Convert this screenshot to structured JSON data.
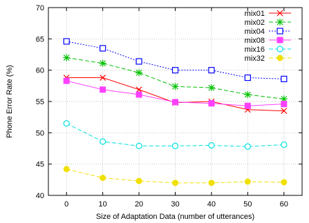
{
  "chart_data": {
    "type": "line",
    "title": "",
    "xlabel": "Size of Adaptation Data (number of utterances)",
    "ylabel": "Phone Error Rate (%)",
    "xlim": [
      -5,
      65
    ],
    "ylim": [
      40,
      70
    ],
    "xticks": [
      0,
      10,
      20,
      30,
      40,
      50,
      60
    ],
    "yticks": [
      40,
      45,
      50,
      55,
      60,
      65,
      70
    ],
    "grid": true,
    "legend_position": "top-right",
    "x": [
      0,
      10,
      20,
      30,
      40,
      50,
      60
    ],
    "series": [
      {
        "name": "mix01",
        "color": "#ff0000",
        "marker": "x",
        "dash": "solid",
        "values": [
          58.8,
          58.8,
          56.9,
          54.8,
          55.0,
          53.7,
          53.5
        ]
      },
      {
        "name": "mix02",
        "color": "#00c000",
        "marker": "star",
        "dash": "dashed",
        "values": [
          62.0,
          61.1,
          59.6,
          57.4,
          57.2,
          56.1,
          55.4
        ]
      },
      {
        "name": "mix04",
        "color": "#0000ff",
        "marker": "open-square",
        "dash": "dotted",
        "values": [
          64.6,
          63.5,
          61.4,
          60.0,
          60.0,
          58.8,
          58.6
        ]
      },
      {
        "name": "mix08",
        "color": "#ff40ff",
        "marker": "filled-square",
        "dash": "solid",
        "values": [
          58.3,
          56.9,
          56.1,
          54.9,
          54.7,
          54.3,
          54.6
        ]
      },
      {
        "name": "mix16",
        "color": "#00e0e0",
        "marker": "open-circle",
        "dash": "dashed",
        "values": [
          51.5,
          48.6,
          47.9,
          47.9,
          48.0,
          47.8,
          48.1
        ]
      },
      {
        "name": "mix32",
        "color": "#f0e000",
        "marker": "filled-circle",
        "dash": "dashed",
        "values": [
          44.2,
          42.8,
          42.3,
          42.0,
          42.0,
          42.2,
          42.1
        ]
      }
    ]
  }
}
